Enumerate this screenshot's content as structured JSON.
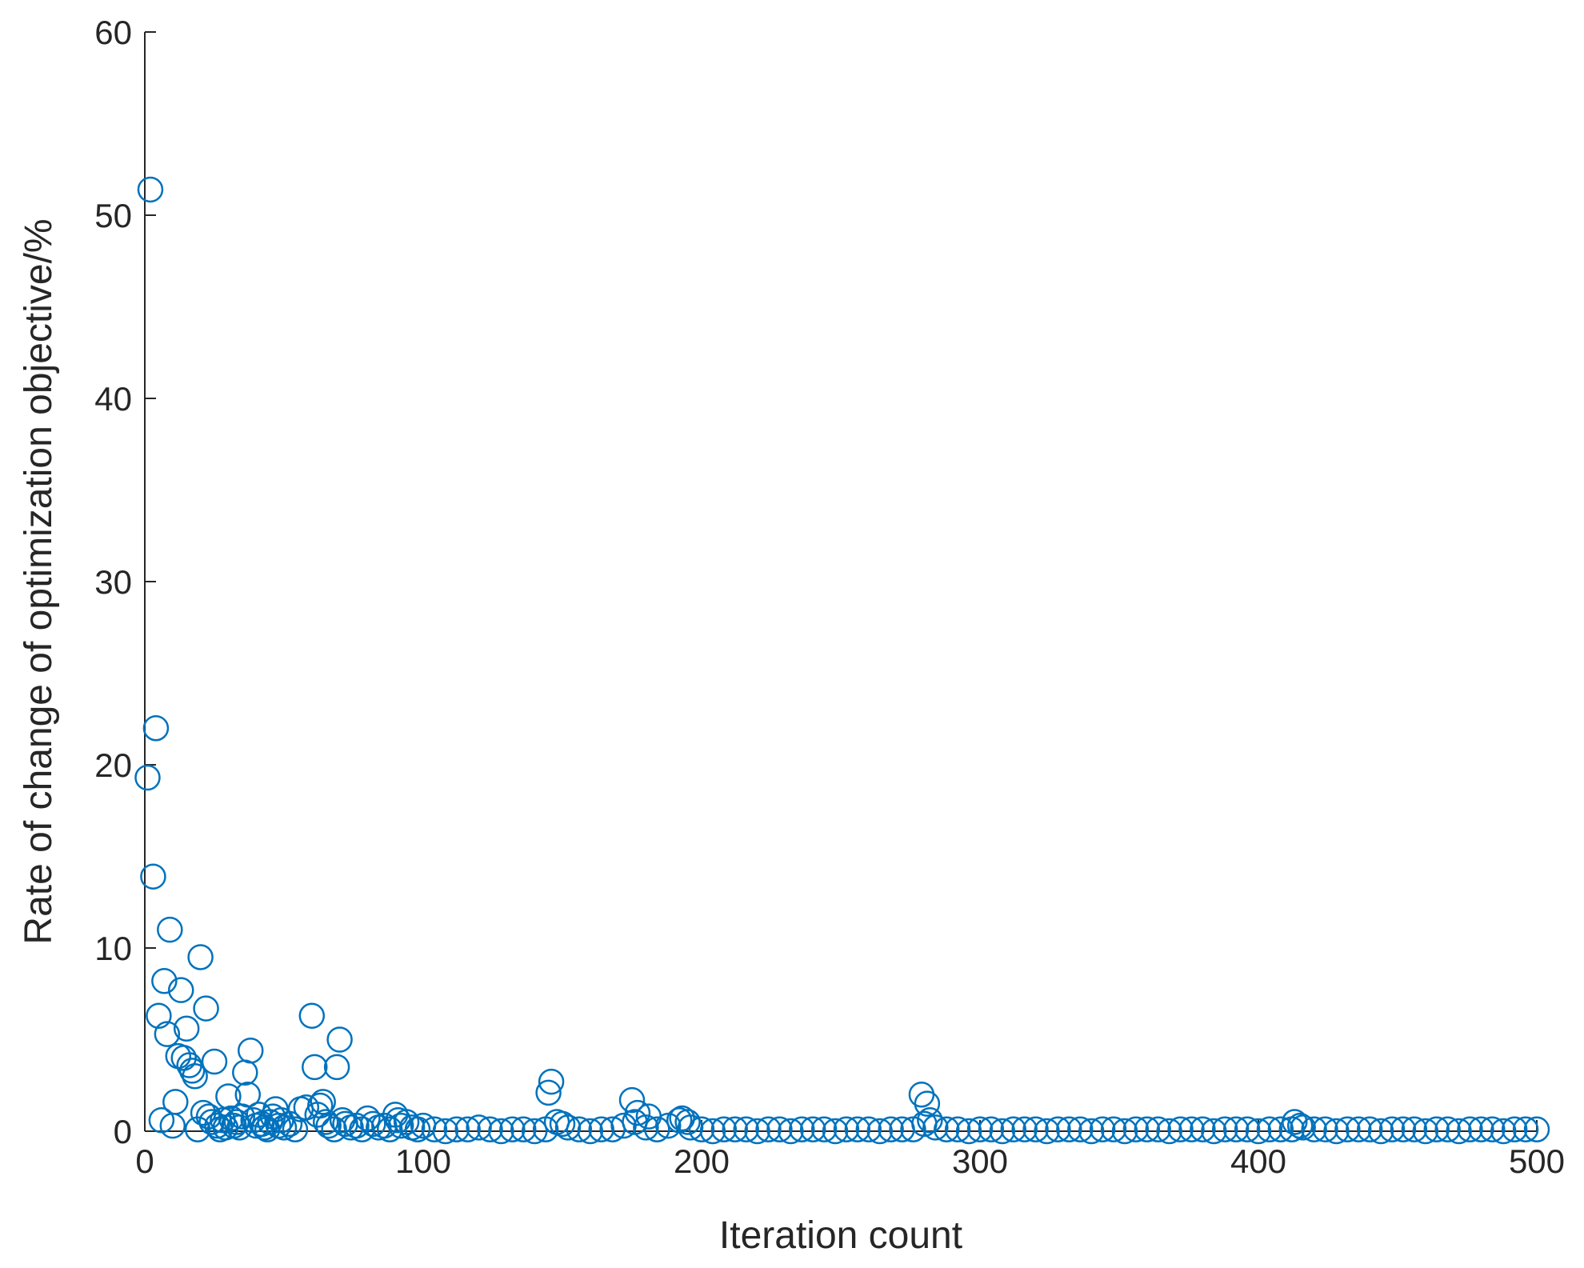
{
  "chart_data": {
    "type": "scatter",
    "xlabel": "Iteration count",
    "ylabel": "Rate of change of optimization objective/%",
    "xlim": [
      0,
      500
    ],
    "ylim": [
      0,
      60
    ],
    "xticks": [
      0,
      100,
      200,
      300,
      400,
      500
    ],
    "yticks": [
      0,
      10,
      20,
      30,
      40,
      50,
      60
    ],
    "series": [
      {
        "color": "#0072BD",
        "x": [
          1,
          2,
          3,
          4,
          5,
          6,
          7,
          8,
          9,
          10,
          11,
          12,
          13,
          14,
          15,
          16,
          17,
          18,
          19,
          20,
          21,
          22,
          23,
          24,
          25,
          26,
          27,
          28,
          29,
          30,
          31,
          32,
          33,
          34,
          35,
          36,
          37,
          38,
          39,
          40,
          41,
          42,
          43,
          44,
          45,
          46,
          47,
          48,
          49,
          50,
          52,
          54,
          56,
          58,
          60,
          61,
          62,
          63,
          64,
          65,
          66,
          68,
          69,
          70,
          71,
          72,
          74,
          76,
          78,
          80,
          82,
          84,
          86,
          88,
          90,
          91,
          92,
          94,
          96,
          98,
          100,
          104,
          108,
          112,
          116,
          120,
          124,
          128,
          132,
          136,
          140,
          144,
          148,
          152,
          156,
          160,
          164,
          168,
          172,
          176,
          180,
          184,
          188,
          192,
          196,
          200,
          204,
          208,
          212,
          216,
          220,
          224,
          228,
          232,
          236,
          240,
          244,
          248,
          252,
          256,
          260,
          264,
          268,
          272,
          276,
          280,
          284,
          288,
          292,
          296,
          300,
          304,
          308,
          312,
          316,
          320,
          324,
          328,
          332,
          336,
          340,
          344,
          348,
          352,
          356,
          360,
          364,
          368,
          372,
          376,
          380,
          384,
          388,
          392,
          396,
          400,
          404,
          408,
          412,
          416,
          420,
          424,
          428,
          432,
          436,
          440,
          444,
          448,
          452,
          456,
          460,
          464,
          468,
          472,
          476,
          480,
          484,
          488,
          492,
          496,
          500,
          145,
          146,
          150,
          175,
          177,
          181,
          193,
          195,
          279,
          281,
          282,
          413,
          415
        ],
        "values": [
          19.3,
          51.4,
          13.9,
          22.0,
          6.3,
          0.6,
          8.2,
          5.3,
          11.0,
          0.3,
          1.6,
          4.1,
          7.7,
          4.0,
          5.6,
          3.6,
          3.3,
          3.0,
          0.1,
          9.5,
          1.0,
          6.7,
          0.8,
          0.5,
          3.8,
          0.3,
          0.1,
          0.6,
          0.2,
          1.9,
          0.7,
          0.3,
          0.5,
          0.2,
          0.8,
          3.2,
          2.0,
          4.4,
          0.6,
          0.3,
          0.9,
          0.4,
          0.2,
          0.1,
          0.5,
          0.8,
          1.2,
          0.3,
          0.6,
          0.2,
          0.4,
          0.1,
          1.2,
          1.3,
          6.3,
          3.5,
          0.9,
          1.4,
          1.6,
          0.5,
          0.3,
          0.1,
          3.5,
          5.0,
          0.6,
          0.4,
          0.2,
          0.3,
          0.1,
          0.7,
          0.4,
          0.2,
          0.3,
          0.1,
          0.9,
          0.6,
          0.3,
          0.5,
          0.2,
          0.1,
          0.3,
          0.1,
          0.0,
          0.1,
          0.1,
          0.2,
          0.1,
          0.0,
          0.1,
          0.1,
          0.0,
          0.1,
          0.5,
          0.2,
          0.1,
          0.0,
          0.1,
          0.1,
          0.3,
          0.5,
          0.2,
          0.1,
          0.3,
          0.6,
          0.2,
          0.1,
          0.0,
          0.1,
          0.1,
          0.1,
          0.0,
          0.1,
          0.1,
          0.0,
          0.1,
          0.1,
          0.1,
          0.0,
          0.1,
          0.1,
          0.1,
          0.0,
          0.1,
          0.1,
          0.1,
          0.4,
          0.2,
          0.1,
          0.1,
          0.0,
          0.1,
          0.1,
          0.0,
          0.1,
          0.1,
          0.1,
          0.0,
          0.1,
          0.1,
          0.1,
          0.0,
          0.1,
          0.1,
          0.0,
          0.1,
          0.1,
          0.1,
          0.0,
          0.1,
          0.1,
          0.1,
          0.0,
          0.1,
          0.1,
          0.1,
          0.0,
          0.1,
          0.1,
          0.1,
          0.2,
          0.1,
          0.1,
          0.0,
          0.1,
          0.1,
          0.1,
          0.0,
          0.1,
          0.1,
          0.1,
          0.0,
          0.1,
          0.1,
          0.0,
          0.1,
          0.1,
          0.1,
          0.0,
          0.1,
          0.1,
          0.1,
          2.1,
          2.7,
          0.4,
          1.7,
          1.0,
          0.8,
          0.7,
          0.5,
          2.0,
          1.5,
          0.6,
          0.5,
          0.3
        ]
      }
    ]
  }
}
